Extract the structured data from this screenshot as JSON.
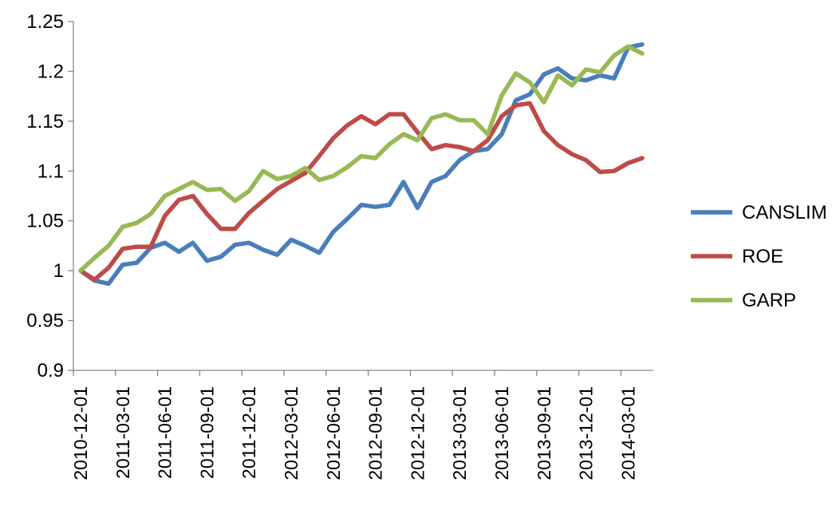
{
  "chart_data": {
    "type": "line",
    "title": "",
    "xlabel": "",
    "ylabel": "",
    "ylim": [
      0.9,
      1.25
    ],
    "y_ticks": [
      "0.9",
      "0.95",
      "1",
      "1.05",
      "1.1",
      "1.15",
      "1.2",
      "1.25"
    ],
    "y_tick_values": [
      0.9,
      0.95,
      1.0,
      1.05,
      1.1,
      1.15,
      1.2,
      1.25
    ],
    "x_ticks": [
      "2010-12-01",
      "2011-03-01",
      "2011-06-01",
      "2011-09-01",
      "2011-12-01",
      "2012-03-01",
      "2012-06-01",
      "2012-09-01",
      "2012-12-01",
      "2013-03-01",
      "2013-06-01",
      "2013-09-01",
      "2013-12-01",
      "2014-03-01"
    ],
    "x": [
      "2010-12",
      "2011-01",
      "2011-02",
      "2011-03",
      "2011-04",
      "2011-05",
      "2011-06",
      "2011-07",
      "2011-08",
      "2011-09",
      "2011-10",
      "2011-11",
      "2011-12",
      "2012-01",
      "2012-02",
      "2012-03",
      "2012-04",
      "2012-05",
      "2012-06",
      "2012-07",
      "2012-08",
      "2012-09",
      "2012-10",
      "2012-11",
      "2012-12",
      "2013-01",
      "2013-02",
      "2013-03",
      "2013-04",
      "2013-05",
      "2013-06",
      "2013-07",
      "2013-08",
      "2013-09",
      "2013-10",
      "2013-11",
      "2013-12",
      "2014-01",
      "2014-02",
      "2014-03",
      "2014-04"
    ],
    "legend_position": "right",
    "grid": false,
    "series": [
      {
        "name": "CANSLIM",
        "color": "#4a7ebb",
        "values": [
          1.0,
          0.99,
          0.987,
          1.006,
          1.008,
          1.023,
          1.028,
          1.019,
          1.028,
          1.01,
          1.014,
          1.026,
          1.028,
          1.021,
          1.016,
          1.031,
          1.025,
          1.018,
          1.039,
          1.052,
          1.066,
          1.064,
          1.066,
          1.089,
          1.063,
          1.089,
          1.095,
          1.111,
          1.12,
          1.122,
          1.137,
          1.171,
          1.177,
          1.197,
          1.203,
          1.193,
          1.191,
          1.196,
          1.193,
          1.224,
          1.227
        ]
      },
      {
        "name": "ROE",
        "color": "#be4b48",
        "values": [
          1.0,
          0.991,
          1.003,
          1.022,
          1.024,
          1.024,
          1.055,
          1.071,
          1.075,
          1.057,
          1.042,
          1.042,
          1.058,
          1.07,
          1.082,
          1.09,
          1.098,
          1.115,
          1.133,
          1.146,
          1.155,
          1.147,
          1.157,
          1.157,
          1.139,
          1.122,
          1.126,
          1.124,
          1.12,
          1.131,
          1.155,
          1.166,
          1.168,
          1.14,
          1.126,
          1.117,
          1.111,
          1.099,
          1.1,
          1.108,
          1.113
        ]
      },
      {
        "name": "GARP",
        "color": "#98b954",
        "values": [
          1.0,
          1.013,
          1.025,
          1.044,
          1.048,
          1.057,
          1.075,
          1.082,
          1.089,
          1.081,
          1.082,
          1.07,
          1.08,
          1.1,
          1.092,
          1.095,
          1.103,
          1.091,
          1.095,
          1.104,
          1.115,
          1.113,
          1.127,
          1.137,
          1.131,
          1.153,
          1.157,
          1.151,
          1.151,
          1.137,
          1.176,
          1.198,
          1.189,
          1.169,
          1.196,
          1.186,
          1.202,
          1.199,
          1.216,
          1.225,
          1.218
        ]
      }
    ]
  }
}
